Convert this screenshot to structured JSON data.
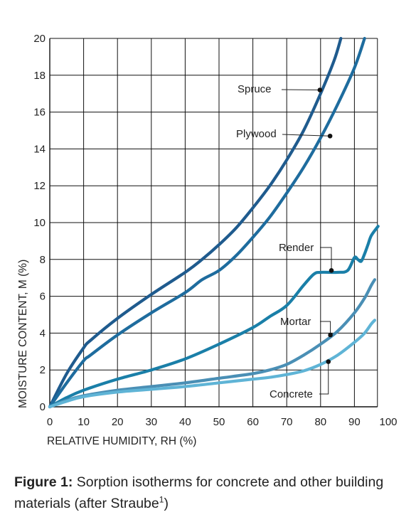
{
  "chart_data": {
    "type": "line",
    "xlabel": "RELATIVE HUMIDITY, RH (%)",
    "ylabel": "MOISTURE CONTENT, M (%)",
    "xlim": [
      0,
      100
    ],
    "ylim": [
      0,
      20
    ],
    "xticks": [
      0,
      10,
      20,
      30,
      40,
      50,
      60,
      70,
      80,
      90,
      100
    ],
    "yticks": [
      0,
      2,
      4,
      6,
      8,
      10,
      12,
      14,
      16,
      18,
      20
    ],
    "grid": true,
    "series": [
      {
        "name": "Spruce",
        "color": "#1f5b8e",
        "points": [
          [
            0,
            0
          ],
          [
            5,
            1.8
          ],
          [
            10,
            3.2
          ],
          [
            12,
            3.6
          ],
          [
            20,
            4.8
          ],
          [
            30,
            6.1
          ],
          [
            40,
            7.3
          ],
          [
            45,
            8.0
          ],
          [
            50,
            8.8
          ],
          [
            55,
            9.7
          ],
          [
            60,
            10.8
          ],
          [
            65,
            12.0
          ],
          [
            70,
            13.4
          ],
          [
            75,
            15.0
          ],
          [
            80,
            17.0
          ],
          [
            84,
            18.8
          ],
          [
            86,
            20.0
          ]
        ]
      },
      {
        "name": "Plywood",
        "color": "#1e6c9e",
        "points": [
          [
            0,
            0
          ],
          [
            5,
            1.3
          ],
          [
            10,
            2.5
          ],
          [
            12,
            2.8
          ],
          [
            20,
            3.9
          ],
          [
            30,
            5.1
          ],
          [
            40,
            6.2
          ],
          [
            45,
            6.9
          ],
          [
            50,
            7.4
          ],
          [
            55,
            8.2
          ],
          [
            60,
            9.2
          ],
          [
            65,
            10.3
          ],
          [
            70,
            11.6
          ],
          [
            75,
            13.0
          ],
          [
            80,
            14.6
          ],
          [
            85,
            16.4
          ],
          [
            90,
            18.4
          ],
          [
            93,
            20.0
          ]
        ]
      },
      {
        "name": "Render",
        "color": "#1a7fa8",
        "points": [
          [
            0,
            0
          ],
          [
            5,
            0.5
          ],
          [
            10,
            0.9
          ],
          [
            20,
            1.5
          ],
          [
            30,
            2.0
          ],
          [
            40,
            2.6
          ],
          [
            50,
            3.4
          ],
          [
            60,
            4.3
          ],
          [
            65,
            4.9
          ],
          [
            70,
            5.5
          ],
          [
            75,
            6.6
          ],
          [
            78,
            7.2
          ],
          [
            80,
            7.3
          ],
          [
            85,
            7.3
          ],
          [
            88,
            7.4
          ],
          [
            90,
            8.1
          ],
          [
            91,
            8.0
          ],
          [
            92,
            7.9
          ],
          [
            93,
            8.3
          ],
          [
            94,
            8.8
          ],
          [
            95,
            9.3
          ],
          [
            97,
            9.8
          ]
        ]
      },
      {
        "name": "Mortar",
        "color": "#4a8fb5",
        "points": [
          [
            0,
            0
          ],
          [
            5,
            0.35
          ],
          [
            10,
            0.6
          ],
          [
            20,
            0.9
          ],
          [
            30,
            1.1
          ],
          [
            40,
            1.3
          ],
          [
            50,
            1.55
          ],
          [
            60,
            1.8
          ],
          [
            65,
            2.0
          ],
          [
            70,
            2.3
          ],
          [
            75,
            2.8
          ],
          [
            80,
            3.4
          ],
          [
            85,
            4.1
          ],
          [
            90,
            5.1
          ],
          [
            93,
            5.9
          ],
          [
            95,
            6.6
          ],
          [
            96,
            6.9
          ]
        ]
      },
      {
        "name": "Concrete",
        "color": "#5fb4d6",
        "points": [
          [
            0,
            0
          ],
          [
            5,
            0.3
          ],
          [
            10,
            0.55
          ],
          [
            20,
            0.8
          ],
          [
            30,
            0.95
          ],
          [
            40,
            1.1
          ],
          [
            50,
            1.3
          ],
          [
            60,
            1.5
          ],
          [
            65,
            1.6
          ],
          [
            70,
            1.75
          ],
          [
            75,
            1.95
          ],
          [
            80,
            2.3
          ],
          [
            85,
            2.8
          ],
          [
            90,
            3.5
          ],
          [
            93,
            4.0
          ],
          [
            95,
            4.5
          ],
          [
            96,
            4.7
          ]
        ]
      }
    ],
    "annotations": [
      {
        "series": "Spruce",
        "label": "Spruce",
        "point": [
          79.8,
          17.2
        ]
      },
      {
        "series": "Plywood",
        "label": "Plywood",
        "point": [
          82.8,
          14.7
        ]
      },
      {
        "series": "Render",
        "label": "Render",
        "point": [
          83.2,
          7.4
        ]
      },
      {
        "series": "Mortar",
        "label": "Mortar",
        "point": [
          82.9,
          3.9
        ]
      },
      {
        "series": "Concrete",
        "label": "Concrete",
        "point": [
          82.3,
          2.45
        ]
      }
    ]
  },
  "caption": {
    "prefix": "Figure 1:",
    "text_before_sup": " Sorption isotherms for concrete and other building materials (after Straube",
    "sup": "1",
    "text_after_sup": ")"
  }
}
